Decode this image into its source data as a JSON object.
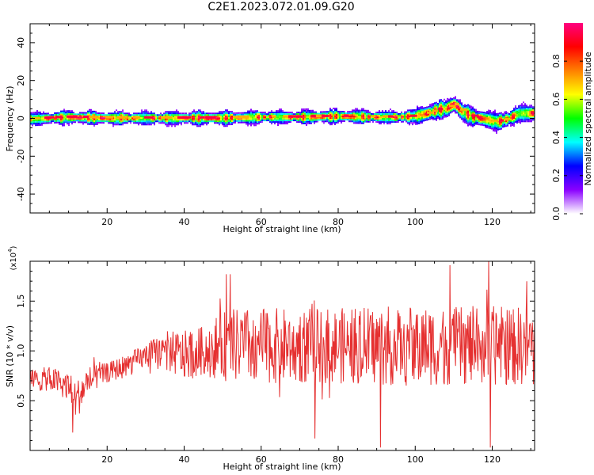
{
  "page_title": "C2E1.2023.072.01.09.G20",
  "chart_data": [
    {
      "type": "heatmap",
      "xlabel": "Height of straight line (km)",
      "ylabel": "Frequency (Hz)",
      "xlim": [
        0,
        131
      ],
      "ylim": [
        -50,
        50
      ],
      "x_ticks": [
        20,
        40,
        60,
        80,
        100,
        120
      ],
      "y_ticks": [
        -40,
        -20,
        0,
        20,
        40
      ],
      "colorbar": {
        "label": "Normalized spectral amplitude",
        "range": [
          0,
          1
        ],
        "ticks": [
          "0.0",
          "0.2",
          "0.4",
          "0.6",
          "0.8"
        ],
        "colors": [
          "#ffffff",
          "#8a00ff",
          "#0000ff",
          "#00ffff",
          "#00ff00",
          "#ffff00",
          "#ff8000",
          "#ff0000",
          "#ff0080"
        ]
      },
      "ridge": {
        "x": [
          0,
          10,
          20,
          30,
          40,
          50,
          60,
          70,
          80,
          90,
          95,
          100,
          103,
          106,
          108,
          110,
          112,
          115,
          118,
          121,
          124,
          127,
          131
        ],
        "frequency": [
          0,
          1,
          0.5,
          0.5,
          0.5,
          0.5,
          1,
          1,
          1.5,
          1,
          1,
          1.5,
          3,
          5,
          5.5,
          8,
          4,
          1,
          0,
          -1.5,
          0,
          3,
          3
        ]
      }
    },
    {
      "type": "line",
      "xlabel": "Height of straight line (km)",
      "ylabel": "SNR (10 * v/v)",
      "y_scale_note": "(x10",
      "y_scale_exp": "4",
      "xlim": [
        0,
        131
      ],
      "ylim": [
        0,
        1.9
      ],
      "x_ticks": [
        20,
        40,
        60,
        80,
        100,
        120
      ],
      "y_ticks": [
        "0.5",
        "1.0",
        "1.5"
      ],
      "series_color": "#e53030",
      "envelope": {
        "x": [
          0,
          5,
          10,
          12,
          15,
          20,
          25,
          30,
          35,
          40,
          45,
          50,
          55,
          60,
          70,
          80,
          90,
          100,
          110,
          120,
          131
        ],
        "mean": [
          0.7,
          0.72,
          0.65,
          0.5,
          0.7,
          0.78,
          0.85,
          0.95,
          1.0,
          0.95,
          1.0,
          1.05,
          1.05,
          1.05,
          1.05,
          1.05,
          1.05,
          1.05,
          1.05,
          1.05,
          1.05
        ],
        "amplitude": [
          0.12,
          0.12,
          0.15,
          0.2,
          0.15,
          0.1,
          0.12,
          0.12,
          0.2,
          0.25,
          0.25,
          0.35,
          0.38,
          0.38,
          0.38,
          0.38,
          0.4,
          0.4,
          0.4,
          0.4,
          0.4
        ]
      },
      "extremes": [
        {
          "x": 51,
          "y": 1.77
        },
        {
          "x": 52,
          "y": 1.77
        },
        {
          "x": 74,
          "y": 0.12
        },
        {
          "x": 91,
          "y": 0.03
        },
        {
          "x": 109,
          "y": 1.86
        },
        {
          "x": 119,
          "y": 1.9
        },
        {
          "x": 119.5,
          "y": 0.03
        },
        {
          "x": 11,
          "y": 0.18
        },
        {
          "x": 129,
          "y": 1.7
        }
      ]
    }
  ]
}
